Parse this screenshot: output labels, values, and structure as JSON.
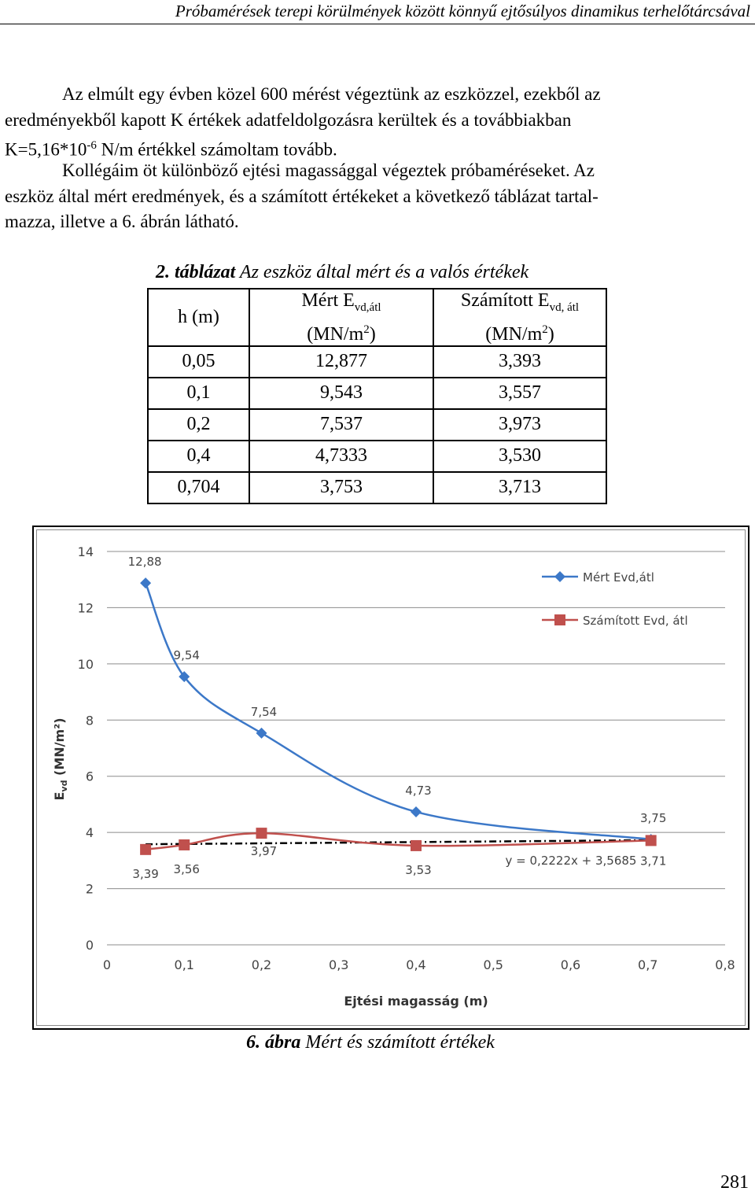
{
  "header": {
    "running_title": "Próbamérések terepi körülmények között könnyű ejtősúlyos dinamikus terhelőtárcsával"
  },
  "paragraph1": {
    "line1": "Az elmúlt egy évben közel 600 mérést végeztünk az eszközzel, ezekből az",
    "line2": "eredményekből kapott K értékek adatfeldolgozásra kerültek és a továbbiakban",
    "line3_pre": "K=5,16*10",
    "line3_sup": "-6",
    "line3_post": " N/m értékkel számoltam tovább."
  },
  "paragraph2": {
    "line1": "Kollégáim öt különböző ejtési magassággal végeztek próbaméréseket. Az",
    "line2": "eszköz által mért eredmények, és a számított értékeket a következő táblázat tartal-",
    "line3": "mazza, illetve a 6. ábrán látható."
  },
  "table_caption": {
    "number": "2. táblázat",
    "text": " Az eszköz által mért és a valós értékek"
  },
  "table": {
    "headers": {
      "h": "h (m)",
      "measured_main": "Mért E",
      "measured_sub": "vd,átl",
      "calc_main": "Számított E",
      "calc_sub": "vd, átl",
      "unit_pre": "(MN/m",
      "unit_sup": "2",
      "unit_post": ")"
    },
    "rows": [
      [
        "0,05",
        "12,877",
        "3,393"
      ],
      [
        "0,1",
        "9,543",
        "3,557"
      ],
      [
        "0,2",
        "7,537",
        "3,973"
      ],
      [
        "0,4",
        "4,7333",
        "3,530"
      ],
      [
        "0,704",
        "3,753",
        "3,713"
      ]
    ]
  },
  "chart_data": {
    "type": "line",
    "xlabel": "Ejtési magasság (m)",
    "ylabel": "Evd (MN/m²)",
    "ylabel_parts": {
      "main": "E",
      "sub": "vd",
      "rest": " (MN/m²)"
    },
    "xlim": [
      0,
      0.8
    ],
    "ylim": [
      0,
      14
    ],
    "x_ticks": [
      "0",
      "0,1",
      "0,2",
      "0,3",
      "0,4",
      "0,5",
      "0,6",
      "0,7",
      "0,8"
    ],
    "y_ticks": [
      "0",
      "2",
      "4",
      "6",
      "8",
      "10",
      "12",
      "14"
    ],
    "grid": "horizontal",
    "legend_position": "top-right",
    "series": [
      {
        "name": "Mért Evd,átl",
        "color": "#3c78c8",
        "marker": "diamond",
        "x": [
          0.05,
          0.1,
          0.2,
          0.4,
          0.704
        ],
        "y": [
          12.877,
          9.543,
          7.537,
          4.7333,
          3.753
        ],
        "labels": [
          "12,88",
          "9,54",
          "7,54",
          "4,73",
          "3,75"
        ]
      },
      {
        "name": "Számított Evd, átl",
        "color": "#c0504d",
        "marker": "square",
        "x": [
          0.05,
          0.1,
          0.2,
          0.4,
          0.704
        ],
        "y": [
          3.393,
          3.557,
          3.973,
          3.53,
          3.713
        ],
        "labels": [
          "3,39",
          "3,56",
          "3,97",
          "3,53",
          "3,71"
        ]
      }
    ],
    "trendline": {
      "color": "#000000",
      "slope": 0.2222,
      "intercept": 3.5685,
      "equation_label": "y = 0,2222x + 3,5685"
    }
  },
  "figure_caption": {
    "number": "6. ábra",
    "text": " Mért és számított értékek"
  },
  "page_number": "281"
}
